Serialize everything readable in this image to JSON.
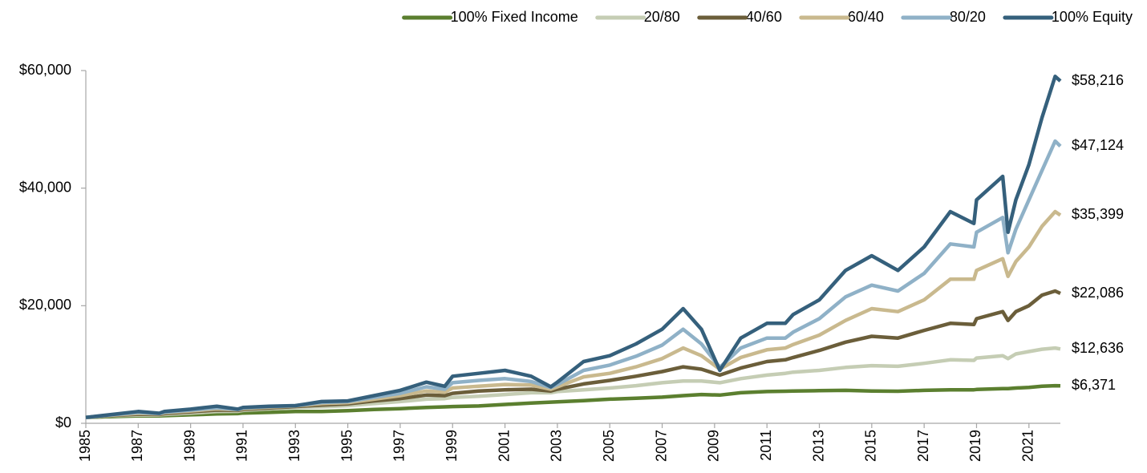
{
  "chart_data": {
    "type": "line",
    "x": [
      1985,
      1986,
      1987,
      1987.8,
      1988,
      1989,
      1990,
      1990.8,
      1991,
      1992,
      1993,
      1994,
      1995,
      1996,
      1997,
      1998,
      1998.7,
      1999,
      2000,
      2001,
      2002,
      2002.75,
      2003,
      2004,
      2005,
      2006,
      2007,
      2007.8,
      2008.5,
      2009.2,
      2010,
      2011,
      2011.7,
      2012,
      2013,
      2014,
      2015,
      2016,
      2017,
      2018,
      2018.9,
      2019,
      2020,
      2020.2,
      2020.5,
      2021,
      2021.5,
      2022,
      2022.2
    ],
    "series": [
      {
        "name": "100% Fixed Income",
        "color": "#5b7f2f",
        "values": [
          1000,
          1150,
          1250,
          1250,
          1300,
          1450,
          1600,
          1650,
          1750,
          1850,
          2000,
          2000,
          2150,
          2350,
          2500,
          2700,
          2800,
          2850,
          2950,
          3200,
          3450,
          3600,
          3650,
          3850,
          4100,
          4250,
          4450,
          4700,
          4900,
          4800,
          5200,
          5400,
          5450,
          5500,
          5550,
          5600,
          5500,
          5450,
          5600,
          5700,
          5700,
          5750,
          5900,
          5900,
          6000,
          6100,
          6300,
          6400,
          6371
        ],
        "end_label": "$6,371"
      },
      {
        "name": "20/80",
        "color": "#c5cdb4",
        "values": [
          1000,
          1300,
          1400,
          1400,
          1500,
          1750,
          2000,
          2050,
          2200,
          2450,
          2700,
          2800,
          3000,
          3350,
          3700,
          4100,
          4200,
          4400,
          4600,
          4900,
          5200,
          5200,
          5400,
          5700,
          6000,
          6400,
          6900,
          7200,
          7200,
          6900,
          7600,
          8200,
          8500,
          8700,
          9000,
          9500,
          9800,
          9700,
          10200,
          10800,
          10700,
          11100,
          11500,
          11000,
          11800,
          12200,
          12600,
          12800,
          12636
        ],
        "end_label": "$12,636"
      },
      {
        "name": "40/60",
        "color": "#6b5e3a",
        "values": [
          1000,
          1350,
          1550,
          1500,
          1650,
          1950,
          2250,
          2200,
          2350,
          2600,
          2850,
          3100,
          3300,
          3800,
          4200,
          4800,
          4700,
          5100,
          5500,
          5700,
          5800,
          5500,
          5800,
          6700,
          7300,
          8000,
          8800,
          9600,
          9200,
          8200,
          9400,
          10500,
          10800,
          11200,
          12400,
          13800,
          14800,
          14500,
          15800,
          17000,
          16800,
          17800,
          19000,
          17500,
          19000,
          20000,
          21800,
          22500,
          22086
        ],
        "end_label": "$22,086"
      },
      {
        "name": "60/40",
        "color": "#c9b98e",
        "values": [
          1000,
          1400,
          1700,
          1600,
          1800,
          2100,
          2450,
          2300,
          2500,
          2750,
          2950,
          3350,
          3500,
          4100,
          4700,
          5500,
          5300,
          6000,
          6300,
          6600,
          6500,
          5800,
          6200,
          7900,
          8500,
          9600,
          11000,
          12800,
          11500,
          9200,
          11200,
          12500,
          12800,
          13400,
          15000,
          17500,
          19500,
          19000,
          21000,
          24500,
          24500,
          26000,
          28000,
          25000,
          27500,
          30000,
          33500,
          36000,
          35399
        ],
        "end_label": "$35,399"
      },
      {
        "name": "80/20",
        "color": "#8fb1c7",
        "values": [
          1000,
          1450,
          1850,
          1650,
          1900,
          2250,
          2650,
          2350,
          2600,
          2850,
          3000,
          3550,
          3700,
          4400,
          5100,
          6200,
          5800,
          6900,
          7300,
          7600,
          7100,
          6100,
          6600,
          9000,
          9900,
          11400,
          13300,
          16000,
          13500,
          9500,
          12800,
          14500,
          14500,
          15500,
          17800,
          21500,
          23500,
          22500,
          25500,
          30500,
          30000,
          32500,
          35000,
          29000,
          33000,
          38000,
          43000,
          48000,
          47124
        ],
        "end_label": "$47,124"
      },
      {
        "name": "100% Equity",
        "color": "#35607c",
        "values": [
          1000,
          1500,
          2000,
          1700,
          2000,
          2400,
          2900,
          2400,
          2700,
          2900,
          3000,
          3700,
          3800,
          4700,
          5600,
          7000,
          6300,
          8000,
          8500,
          9000,
          8000,
          6200,
          7000,
          10500,
          11500,
          13500,
          16000,
          19500,
          16000,
          9000,
          14500,
          17000,
          17000,
          18500,
          21000,
          26000,
          28500,
          26000,
          30000,
          36000,
          34000,
          38000,
          42000,
          32500,
          38000,
          44000,
          52000,
          59000,
          58216
        ],
        "end_label": "$58,216"
      }
    ],
    "xlim": [
      1985,
      2022.2
    ],
    "xticks": [
      1985,
      1987,
      1989,
      1991,
      1993,
      1995,
      1997,
      1999,
      2001,
      2003,
      2005,
      2007,
      2009,
      2011,
      2013,
      2015,
      2017,
      2019,
      2021
    ],
    "ylim": [
      0,
      60000
    ],
    "yticks": [
      {
        "value": 0,
        "label": "$0"
      },
      {
        "value": 20000,
        "label": "$20,000"
      },
      {
        "value": 40000,
        "label": "$40,000"
      },
      {
        "value": 60000,
        "label": "$60,000"
      }
    ],
    "legend": "top-right",
    "grid": false
  }
}
